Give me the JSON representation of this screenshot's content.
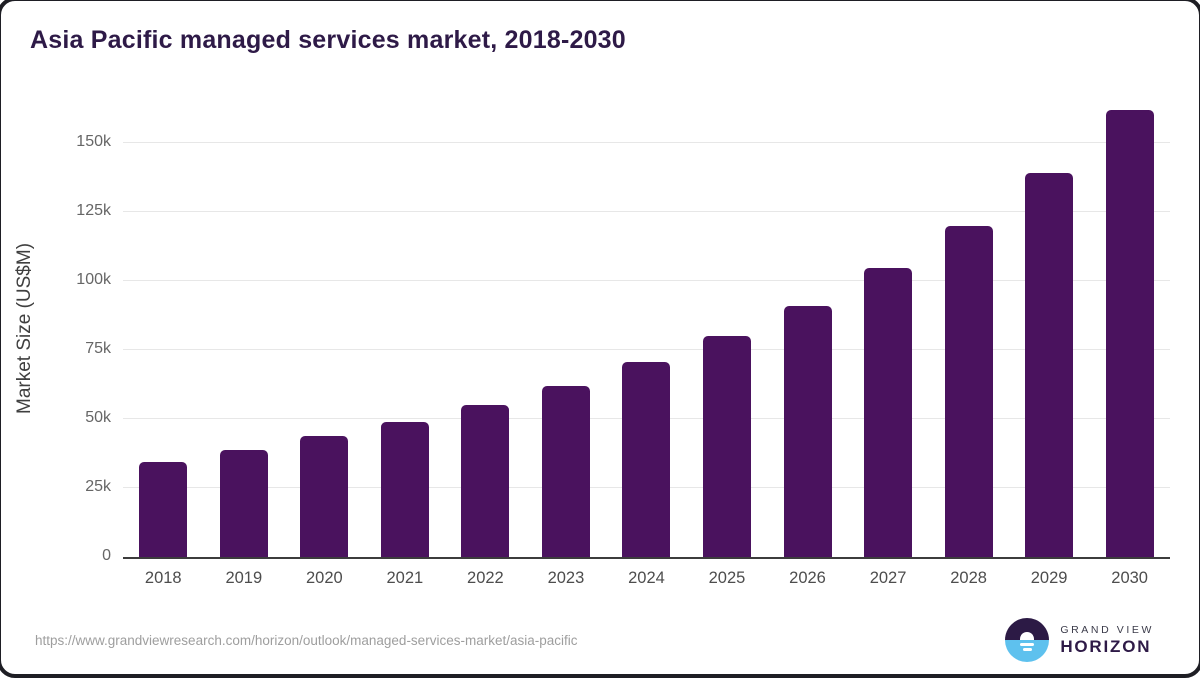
{
  "title": "Asia Pacific managed services market, 2018-2030",
  "chart_data": {
    "type": "bar",
    "title": "Asia Pacific managed services market, 2018-2030",
    "categories": [
      "2018",
      "2019",
      "2020",
      "2021",
      "2022",
      "2023",
      "2024",
      "2025",
      "2026",
      "2027",
      "2028",
      "2029",
      "2030"
    ],
    "values": [
      34500,
      38800,
      43800,
      48800,
      55000,
      62000,
      70500,
      80000,
      91000,
      104500,
      120000,
      139000,
      162000
    ],
    "xlabel": "",
    "ylabel": "Market Size (US$M)",
    "ylim": [
      0,
      165000
    ],
    "grid": true,
    "legend": false,
    "y_ticks": [
      {
        "value": 0,
        "label": "0"
      },
      {
        "value": 25000,
        "label": "25k"
      },
      {
        "value": 50000,
        "label": "50k"
      },
      {
        "value": 75000,
        "label": "75k"
      },
      {
        "value": 100000,
        "label": "100k"
      },
      {
        "value": 125000,
        "label": "125k"
      },
      {
        "value": 150000,
        "label": "150k"
      }
    ]
  },
  "footer": {
    "source_url": "https://www.grandviewresearch.com/horizon/outlook/managed-services-market/asia-pacific",
    "logo": {
      "top_text": "GRAND VIEW",
      "bottom_text": "HORIZON"
    }
  },
  "colors": {
    "bar": "#4a125e",
    "title": "#2e1a47",
    "axis_label": "#3f3f3f",
    "tick": "#666666",
    "gridline": "#e7e7e7",
    "url": "#9e9e9e",
    "logo_dark": "#2c1a45",
    "logo_blue": "#5ec1ee"
  }
}
